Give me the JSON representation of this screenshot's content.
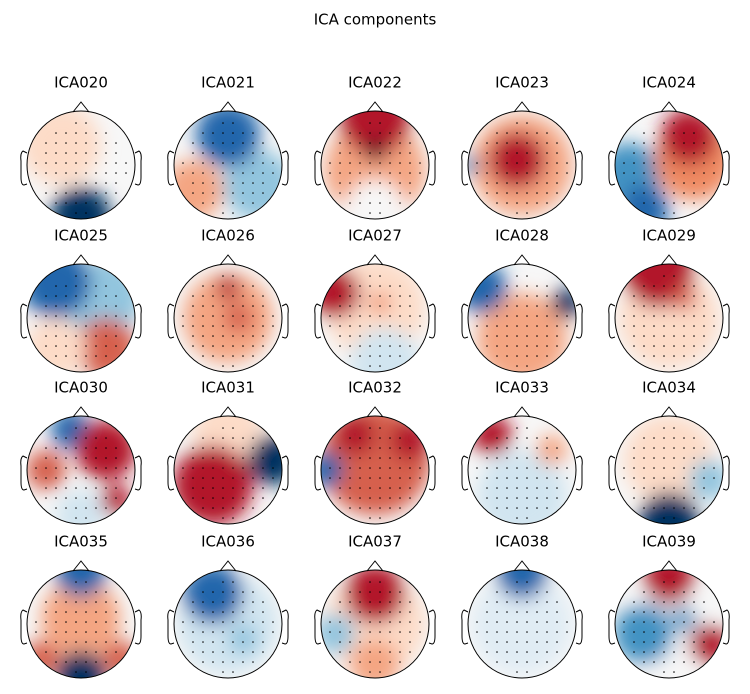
{
  "title": "ICA components",
  "components": [
    "ICA020",
    "ICA021",
    "ICA022",
    "ICA023",
    "ICA024",
    "ICA025",
    "ICA026",
    "ICA027",
    "ICA028",
    "ICA029",
    "ICA030",
    "ICA031",
    "ICA032",
    "ICA033",
    "ICA034",
    "ICA035",
    "ICA036",
    "ICA037",
    "ICA038",
    "ICA039"
  ]
}
